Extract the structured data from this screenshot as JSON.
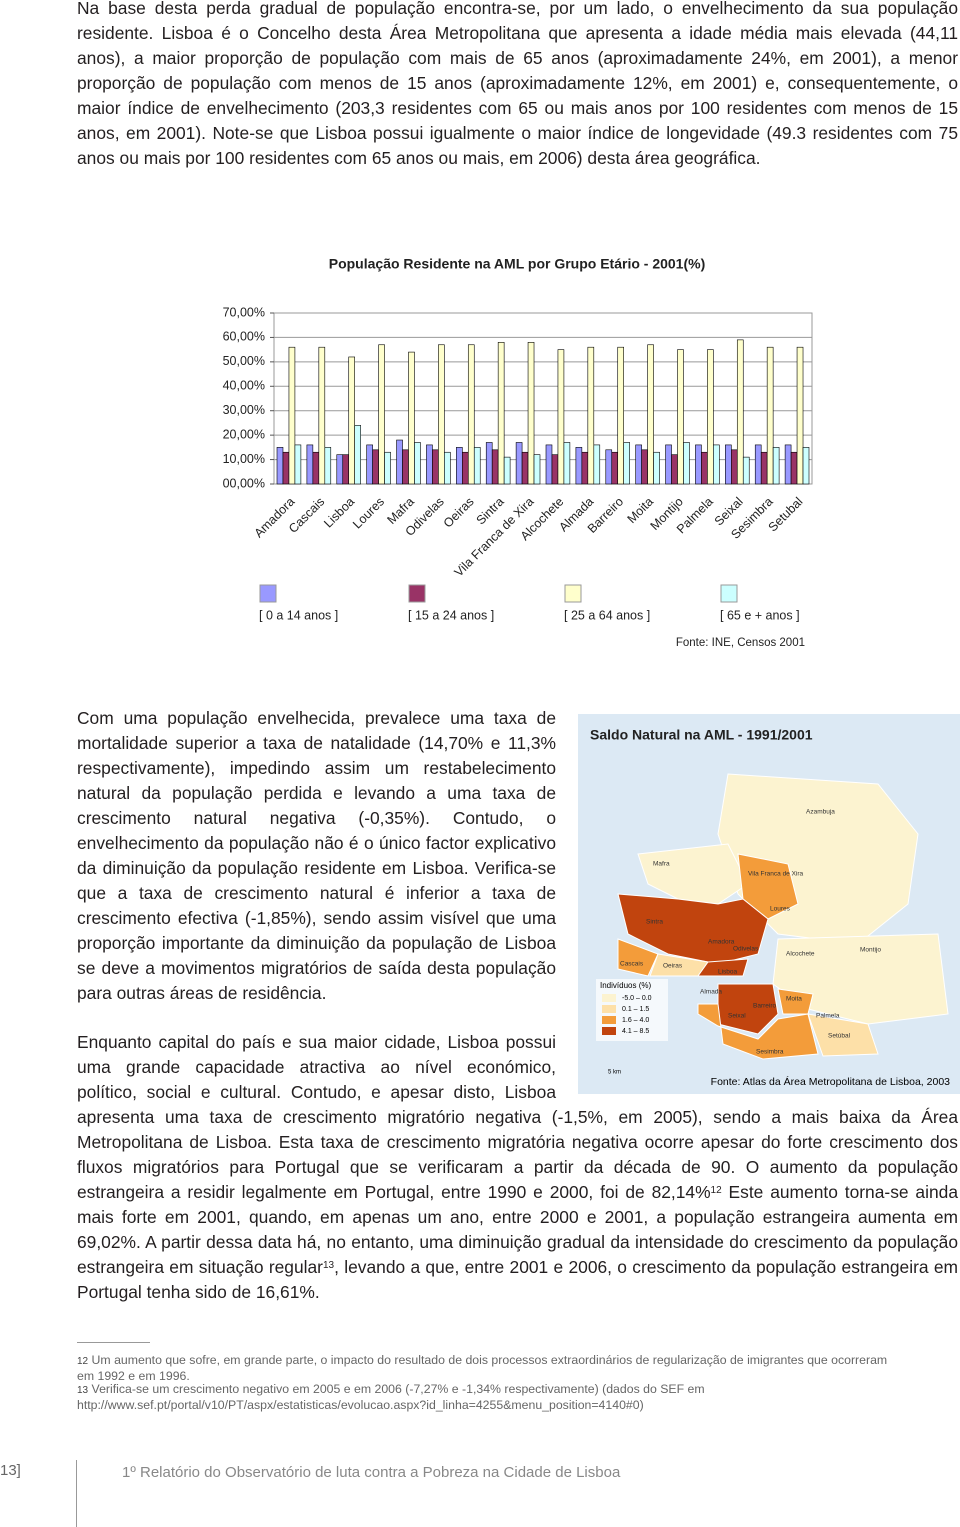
{
  "paragraphs": [
    "Na base desta perda gradual de população encontra-se, por um lado, o envelhecimento da sua população residente. Lisboa é o Concelho desta Área Metropolitana que apresenta a idade média mais elevada (44,11 anos), a maior proporção de população com mais de 65 anos (aproximadamente 24%, em 2001), a menor proporção de população com menos de 15 anos (aproximadamente 12%, em 2001) e, consequentemente, o maior índice de envelhecimento (203,3 residentes com 65 ou mais anos por 100 residentes com menos de 15 anos, em 2001). Note-se que Lisboa possui igualmente o maior índice de longevidade (49.3 residentes com 75 anos ou mais por 100 residentes com 65 anos ou mais, em 2006) desta área geográfica.",
    "Com uma população envelhecida, prevalece uma taxa de mortalidade superior a taxa de natalidade (14,70% e 11,3% respectivamente), impedindo assim um restabelecimento natural da população perdida e levando a uma taxa de crescimento natural negativa (-0,35%). Contudo, o envelhecimento da população não é o único factor explicativo da diminuição da população residente em Lisboa. Verifica-se que a taxa de crescimento natural é inferior a taxa de crescimento efectiva (-1,85%), sendo assim visível que uma proporção importante da diminuição da população de Lisboa se deve a movimentos migratórios de saída desta população para outras áreas de residência."
  ],
  "paragraph_3": {
    "text_1": "Enquanto capital do país e sua maior cidade, Lisboa possui uma grande capacidade atractiva ao nível económico, político, social e cultural. Contudo, e apesar disto, Lisboa apresenta uma taxa de crescimento migratório negativa (-1,5%, em 2005), sendo a mais baixa da Área Metropolitana de Lisboa. Esta taxa de crescimento migratória negativa ocorre apesar do forte crescimento dos fluxos migratórios para Portugal que se verificaram a partir da década de 90. O aumento da população estrangeira a residir legalmente em Portugal, entre 1990 e 2000, foi de 82,14%",
    "note_ref_1": "12",
    "text_2": " Este aumento torna-se ainda mais forte em 2001, quando, em apenas um ano, entre 2000 e 2001, a população estrangeira aumenta em 69,02%. A partir dessa data há, no entanto, uma diminuição gradual da intensidade do crescimento da população estrangeira em situação regular",
    "note_ref_2": "13",
    "text_3": ", levando a que, entre 2001 e 2006, o crescimento da população estrangeira em Portugal tenha sido de 16,61%."
  },
  "chart_data": {
    "type": "bar",
    "title": "População Residente na AML  por Grupo Etário - 2001(%)",
    "categories": [
      "Amadora",
      "Cascais",
      "Lisboa",
      "Loures",
      "Mafra",
      "Odivelas",
      "Oeiras",
      "Sintra",
      "Vila Franca de Xira",
      "Alcochete",
      "Almada",
      "Barreiro",
      "Moita",
      "Montijo",
      "Palmela",
      "Seixal",
      "Sesimbra",
      "Setubal"
    ],
    "series": [
      {
        "name": "[ 0 a 14 anos ]",
        "color": "#9999ff",
        "values": [
          15,
          16,
          12,
          16,
          18,
          16,
          15,
          17,
          17,
          16,
          15,
          14,
          16,
          16,
          16,
          16,
          16,
          16
        ]
      },
      {
        "name": "[ 15 a 24 anos ]",
        "color": "#993366",
        "values": [
          13,
          13,
          12,
          14,
          14,
          14,
          13,
          14,
          13,
          12,
          13,
          13,
          14,
          12,
          13,
          14,
          13,
          13
        ]
      },
      {
        "name": "[ 25 a 64 anos ]",
        "color": "#ffffcc",
        "values": [
          56,
          56,
          52,
          57,
          54,
          57,
          57,
          58,
          58,
          55,
          56,
          56,
          57,
          55,
          55,
          59,
          56,
          56
        ]
      },
      {
        "name": "[ 65 e + anos ]",
        "color": "#ccffff",
        "values": [
          16,
          15,
          24,
          13,
          17,
          13,
          15,
          11,
          12,
          17,
          16,
          17,
          13,
          17,
          16,
          11,
          15,
          15
        ]
      }
    ],
    "ylim": [
      0,
      70
    ],
    "yticks": [
      {
        "value": 0,
        "label": "00,00%"
      },
      {
        "value": 10,
        "label": "10,00%"
      },
      {
        "value": 20,
        "label": "20,00%"
      },
      {
        "value": 30,
        "label": "30,00%"
      },
      {
        "value": 40,
        "label": "40,00%"
      },
      {
        "value": 50,
        "label": "50,00%"
      },
      {
        "value": 60,
        "label": "60,00%"
      },
      {
        "value": 70,
        "label": "70,00%"
      }
    ],
    "grid": true,
    "source": "Fonte: INE, Censos 2001"
  },
  "map": {
    "title": "Saldo Natural na AML - 1991/2001",
    "legend_title": "Indivíduos (%)",
    "legend": [
      "-5.0 – 0.0",
      "0.1 – 1.5",
      "1.6 – 4.0",
      "4.1 – 8.5"
    ],
    "places": [
      "Azambuja",
      "Mafra",
      "Vila Franca de Xira",
      "Loures",
      "Sintra",
      "Amadora",
      "Odivelas",
      "Cascais",
      "Oeiras",
      "Lisboa",
      "Alcochete",
      "Montijo",
      "Moita",
      "Palmela",
      "Barreiro",
      "Seixal",
      "Almada",
      "Setúbal",
      "Sesimbra"
    ],
    "scale": "5 km",
    "source": "Fonte: Atlas da Área Metropolitana de Lisboa, 2003"
  },
  "footnotes": [
    {
      "number": "12",
      "text": "Um aumento que sofre, em grande parte, o impacto do resultado de dois processos extraordinários de regularização de imigrantes que ocorreram em 1992 e em 1996."
    },
    {
      "number": "13",
      "text": "Verifica-se um crescimento negativo em 2005 e em 2006 (-7,27% e -1,34% respectivamente) (dados do SEF em http://www.sef.pt/portal/v10/PT/aspx/estatisticas/evolucao.aspx?id_linha=4255&menu_position=4140#0)"
    }
  ],
  "footer": {
    "page": "13]",
    "text": "1º Relatório do Observatório de luta contra a Pobreza na Cidade de Lisboa"
  }
}
